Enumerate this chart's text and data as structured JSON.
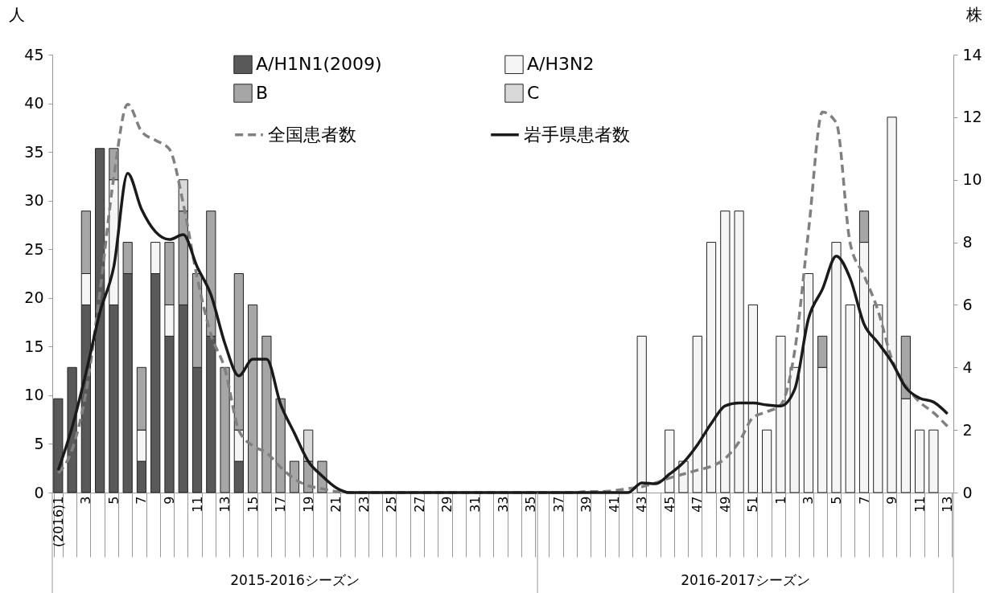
{
  "chart_data": {
    "type": "bar",
    "stacked": true,
    "legend": "top",
    "ylabel": "人",
    "y2label": "株",
    "ylim": [
      0,
      45
    ],
    "yticks": [
      0,
      5,
      10,
      15,
      20,
      25,
      30,
      35,
      40,
      45
    ],
    "y2lim": [
      0,
      14
    ],
    "y2ticks": [
      0,
      2,
      4,
      6,
      8,
      10,
      12,
      14
    ],
    "annotations": [
      "2015-2016シーズン",
      "2016-2017シーズン"
    ],
    "categories": [
      "(2016)1",
      null,
      "3",
      null,
      "5",
      null,
      "7",
      null,
      "9",
      null,
      "11",
      null,
      "13",
      null,
      "15",
      null,
      "17",
      null,
      "19",
      null,
      "21",
      null,
      "23",
      null,
      "25",
      null,
      "27",
      null,
      "29",
      null,
      "31",
      null,
      "33",
      null,
      "35",
      null,
      "37",
      null,
      "39",
      null,
      "41",
      null,
      "43",
      null,
      "45",
      null,
      "47",
      null,
      "49",
      null,
      "51",
      null,
      "1",
      null,
      "3",
      null,
      "5",
      null,
      "7",
      null,
      "9",
      null,
      "11",
      null,
      "13"
    ],
    "series": [
      {
        "name": "A/H1N1(2009)",
        "axis": "y2",
        "color": "#595959",
        "values": [
          3,
          4,
          6,
          11,
          6,
          7,
          1,
          7,
          5,
          6,
          4,
          5,
          0,
          1,
          0,
          0,
          0,
          0,
          0,
          0,
          0,
          0,
          0,
          0,
          0,
          0,
          0,
          0,
          0,
          0,
          0,
          0,
          0,
          0,
          0,
          0,
          0,
          0,
          0,
          0,
          0,
          0,
          0,
          0,
          0,
          0,
          0,
          0,
          0,
          0,
          0,
          0,
          0,
          0,
          0,
          0,
          0,
          0,
          0,
          0,
          0,
          0,
          0,
          0,
          0
        ]
      },
      {
        "name": "A/H3N2",
        "axis": "y2",
        "color": "#f5f5f5",
        "values": [
          0,
          0,
          1,
          0,
          4,
          0,
          1,
          1,
          1,
          0,
          0,
          0,
          0,
          1,
          0,
          0,
          0,
          0,
          0,
          0,
          0,
          0,
          0,
          0,
          0,
          0,
          0,
          0,
          0,
          0,
          0,
          0,
          0,
          0,
          0,
          0,
          0,
          0,
          0,
          0,
          0,
          0,
          5,
          0,
          2,
          1,
          5,
          8,
          9,
          9,
          6,
          2,
          5,
          4,
          7,
          4,
          8,
          6,
          8,
          6,
          12,
          3,
          2,
          2,
          0
        ]
      },
      {
        "name": "B",
        "axis": "y2",
        "color": "#a6a6a6",
        "values": [
          0,
          0,
          2,
          0,
          1,
          1,
          2,
          0,
          2,
          3,
          3,
          4,
          4,
          5,
          6,
          5,
          3,
          1,
          1,
          1,
          0,
          0,
          0,
          0,
          0,
          0,
          0,
          0,
          0,
          0,
          0,
          0,
          0,
          0,
          0,
          0,
          0,
          0,
          0,
          0,
          0,
          0,
          0,
          0,
          0,
          0,
          0,
          0,
          0,
          0,
          0,
          0,
          0,
          0,
          0,
          1,
          0,
          0,
          1,
          0,
          0,
          2,
          0,
          0,
          0
        ]
      },
      {
        "name": "C",
        "axis": "y2",
        "color": "#d9d9d9",
        "values": [
          0,
          0,
          0,
          0,
          0,
          0,
          0,
          0,
          0,
          1,
          0,
          0,
          0,
          0,
          0,
          0,
          0,
          0,
          1,
          0,
          0,
          0,
          0,
          0,
          0,
          0,
          0,
          0,
          0,
          0,
          0,
          0,
          0,
          0,
          0,
          0,
          0,
          0,
          0,
          0,
          0,
          0,
          0,
          0,
          0,
          0,
          0,
          0,
          0,
          0,
          0,
          0,
          0,
          0,
          0,
          0,
          0,
          0,
          0,
          0,
          0,
          0,
          0,
          0,
          0
        ]
      },
      {
        "name": "全国患者数",
        "type": "line",
        "color": "#808080",
        "line_style": "dashed",
        "values": [
          2.0,
          4.4,
          10.3,
          20.6,
          32.4,
          39.9,
          37.1,
          36.2,
          35.3,
          29.7,
          22.1,
          16.2,
          12.7,
          6.4,
          4.8,
          4.1,
          2.6,
          1.4,
          0.7,
          0.4,
          0.1,
          0,
          0,
          0,
          0,
          0,
          0,
          0,
          0,
          0,
          0,
          0,
          0,
          0,
          0,
          0,
          0,
          0,
          0.1,
          0.1,
          0.2,
          0.4,
          0.6,
          1.0,
          1.5,
          1.9,
          2.3,
          2.7,
          3.5,
          5.2,
          7.7,
          8.3,
          9.0,
          14.5,
          26.9,
          39.1,
          38.0,
          25.6,
          22.3,
          18.7,
          13.7,
          11.0,
          9.3,
          8.2,
          6.8
        ]
      },
      {
        "name": "岩手県患者数",
        "type": "line",
        "color": "#1a1a1a",
        "line_style": "solid",
        "values": [
          2.3,
          6.7,
          12.3,
          18.5,
          23.2,
          32.8,
          29.1,
          26.8,
          26.0,
          26.5,
          23.2,
          20.3,
          15.3,
          12.0,
          13.7,
          13.7,
          9.1,
          6.1,
          3.2,
          1.7,
          0.5,
          0,
          0,
          0,
          0,
          0,
          0,
          0,
          0,
          0,
          0,
          0,
          0,
          0,
          0,
          0,
          0,
          0,
          0,
          0,
          0,
          0,
          1.0,
          0.9,
          1.9,
          3.1,
          4.9,
          7.1,
          8.9,
          9.2,
          9.2,
          9.0,
          8.9,
          10.6,
          17.9,
          20.9,
          24.3,
          22.0,
          17.3,
          15.4,
          13.4,
          10.8,
          9.7,
          9.3,
          8.1
        ]
      }
    ]
  }
}
